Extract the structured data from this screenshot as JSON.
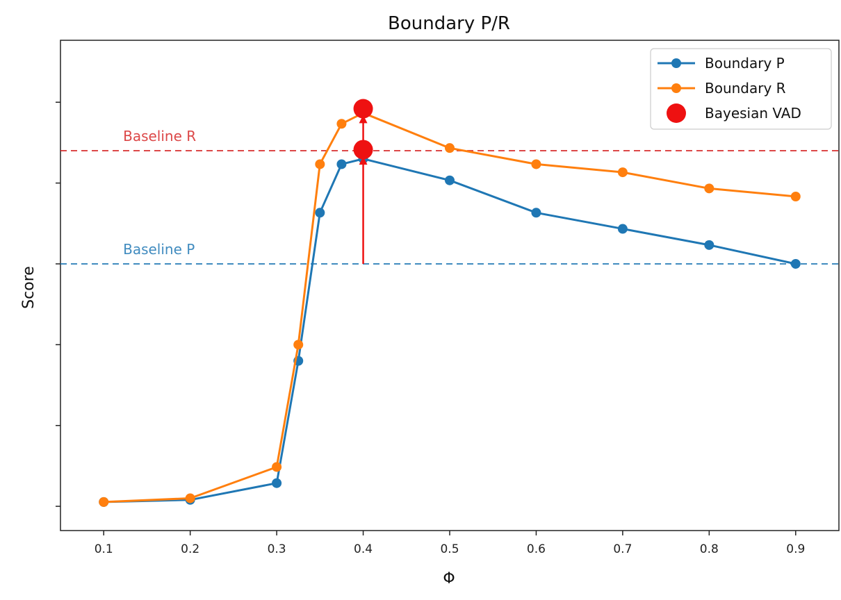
{
  "chart_data": {
    "type": "line",
    "title": "Boundary P/R",
    "xlabel": "Φ",
    "ylabel": "Score",
    "xlim": [
      0.05,
      0.95
    ],
    "ylim": [
      0.055,
      0.965
    ],
    "xticks": [
      0.1,
      0.2,
      0.3,
      0.4,
      0.5,
      0.6,
      0.7,
      0.8,
      0.9
    ],
    "xtick_labels": [
      "0.1",
      "0.2",
      "0.3",
      "0.4",
      "0.5",
      "0.6",
      "0.7",
      "0.8",
      "0.9"
    ],
    "yticks": [
      0.1,
      0.25,
      0.4,
      0.55,
      0.7,
      0.85
    ],
    "grid": false,
    "legend_position": "top-right",
    "series": [
      {
        "name": "Boundary P",
        "color": "#1f77b4",
        "x": [
          0.1,
          0.2,
          0.3,
          0.325,
          0.35,
          0.375,
          0.4,
          0.5,
          0.6,
          0.7,
          0.8,
          0.9
        ],
        "y": [
          0.108,
          0.112,
          0.143,
          0.37,
          0.645,
          0.735,
          0.745,
          0.705,
          0.645,
          0.615,
          0.585,
          0.55
        ]
      },
      {
        "name": "Boundary R",
        "color": "#ff7f0e",
        "x": [
          0.1,
          0.2,
          0.3,
          0.325,
          0.35,
          0.375,
          0.4,
          0.5,
          0.6,
          0.7,
          0.8,
          0.9
        ],
        "y": [
          0.108,
          0.115,
          0.173,
          0.4,
          0.735,
          0.81,
          0.83,
          0.765,
          0.735,
          0.72,
          0.69,
          0.675
        ]
      }
    ],
    "highlight": {
      "name": "Bayesian VAD",
      "color": "#ee1111",
      "x": [
        0.4,
        0.4
      ],
      "y": [
        0.762,
        0.838
      ]
    },
    "arrows": [
      {
        "x": 0.4,
        "from": 0.55,
        "to": 0.747
      },
      {
        "x": 0.4,
        "from": 0.772,
        "to": 0.824
      }
    ],
    "baselines": [
      {
        "label": "Baseline R",
        "y": 0.76,
        "color": "#d62728",
        "label_x": 0.12
      },
      {
        "label": "Baseline P",
        "y": 0.55,
        "color": "#1f77b4",
        "label_x": 0.12
      }
    ]
  }
}
